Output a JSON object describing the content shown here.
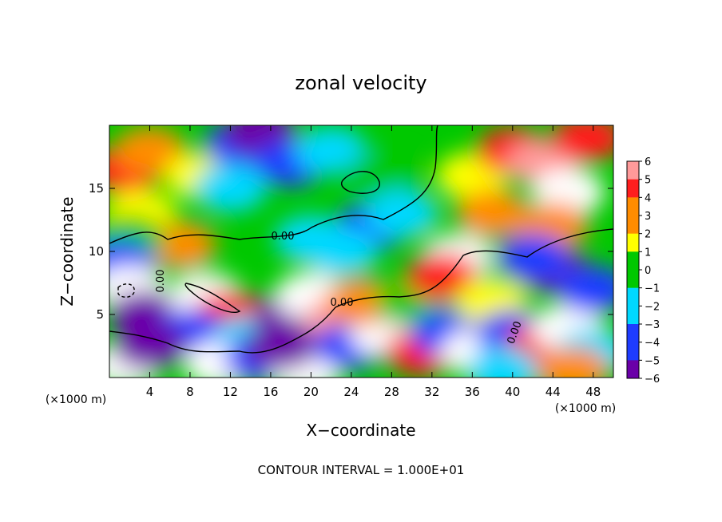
{
  "chart_data": {
    "type": "heatmap",
    "title": "zonal velocity",
    "xlabel": "X−coordinate",
    "ylabel": "Z−coordinate",
    "x_unit": "(×1000 m)",
    "y_unit": "(×1000 m)",
    "xlim": [
      0,
      50
    ],
    "ylim": [
      0,
      20
    ],
    "x_ticks": [
      4,
      8,
      12,
      16,
      20,
      24,
      28,
      32,
      36,
      40,
      44,
      48
    ],
    "y_ticks": [
      5,
      10,
      15
    ],
    "footnote": "CONTOUR INTERVAL = 1.000E+01",
    "colorbar": {
      "levels": [
        6,
        5,
        4,
        3,
        2,
        1,
        0,
        -1,
        -2,
        -3,
        -4,
        -5,
        -6
      ],
      "labels": [
        "6",
        "5",
        "4",
        "3",
        "2",
        "1",
        "0",
        "−1",
        "−2",
        "−3",
        "−4",
        "−5",
        "−6"
      ]
    },
    "contour_labels": [
      "0.00",
      "0.00",
      "0.00",
      "0.00"
    ],
    "colors": {
      "purple": "#6a00a8",
      "blue": "#1e3cff",
      "cyan": "#00d8ff",
      "green": "#00c800",
      "yellow": "#ffff00",
      "orange": "#ff8c00",
      "red": "#ff1e1e",
      "pink": "#ff9a9a",
      "out_of_range": "#ffffff"
    },
    "field_blobs": [
      {
        "x": 1.5,
        "z": 16.5,
        "v": 5
      },
      {
        "x": 4,
        "z": 18,
        "v": 3
      },
      {
        "x": 9,
        "z": 16,
        "v": 2
      },
      {
        "x": 3,
        "z": 13,
        "v": 2
      },
      {
        "x": 13,
        "z": 18.5,
        "v": -4
      },
      {
        "x": 15,
        "z": 19.5,
        "v": -6
      },
      {
        "x": 18,
        "z": 17,
        "v": -3
      },
      {
        "x": 12,
        "z": 15,
        "v": -2
      },
      {
        "x": 22,
        "z": 18,
        "v": -1
      },
      {
        "x": 27,
        "z": 16,
        "v": 1
      },
      {
        "x": 36,
        "z": 16,
        "v": 2
      },
      {
        "x": 40,
        "z": 18,
        "v": 5
      },
      {
        "x": 43,
        "z": 17,
        "v": 6
      },
      {
        "x": 45.5,
        "z": 14.7,
        "v": 7
      },
      {
        "x": 47.5,
        "z": 19,
        "v": 5
      },
      {
        "x": 38,
        "z": 13,
        "v": 3
      },
      {
        "x": 44,
        "z": 12,
        "v": 3
      },
      {
        "x": 26,
        "z": 12,
        "v": -3
      },
      {
        "x": 29,
        "z": 13,
        "v": -2
      },
      {
        "x": 23,
        "z": 10,
        "v": -2
      },
      {
        "x": 20,
        "z": 11,
        "v": -1
      },
      {
        "x": 7,
        "z": 10.5,
        "v": 3
      },
      {
        "x": 2,
        "z": 11,
        "v": 0
      },
      {
        "x": 1,
        "z": 9,
        "v": -3
      },
      {
        "x": 2,
        "z": 7,
        "v": 7
      },
      {
        "x": 3.5,
        "z": 5,
        "v": -5
      },
      {
        "x": 9.5,
        "z": 6.5,
        "v": 7
      },
      {
        "x": 12,
        "z": 5,
        "v": 5
      },
      {
        "x": 8,
        "z": 3.5,
        "v": -4
      },
      {
        "x": 14,
        "z": 3,
        "v": -2
      },
      {
        "x": 1.5,
        "z": 1,
        "v": 7
      },
      {
        "x": 4,
        "z": 2.5,
        "v": -5
      },
      {
        "x": 11,
        "z": 1,
        "v": 7
      },
      {
        "x": 15,
        "z": 1.5,
        "v": -3
      },
      {
        "x": 18,
        "z": 5,
        "v": -5
      },
      {
        "x": 20,
        "z": 6.5,
        "v": 7
      },
      {
        "x": 19.5,
        "z": 0.5,
        "v": 7
      },
      {
        "x": 17,
        "z": 2.5,
        "v": -6
      },
      {
        "x": 23,
        "z": 4.5,
        "v": 6
      },
      {
        "x": 24,
        "z": 2.5,
        "v": -3
      },
      {
        "x": 27.5,
        "z": 3.5,
        "v": 7
      },
      {
        "x": 25,
        "z": 6,
        "v": 3
      },
      {
        "x": 30,
        "z": 6,
        "v": 1
      },
      {
        "x": 31,
        "z": 2,
        "v": 5
      },
      {
        "x": 34.5,
        "z": 9.5,
        "v": 7
      },
      {
        "x": 33,
        "z": 8,
        "v": 5
      },
      {
        "x": 33.5,
        "z": 3.5,
        "v": -4
      },
      {
        "x": 36.5,
        "z": 2,
        "v": 7
      },
      {
        "x": 38,
        "z": 6,
        "v": 2
      },
      {
        "x": 40,
        "z": 3.5,
        "v": -3
      },
      {
        "x": 43,
        "z": 2.5,
        "v": 4
      },
      {
        "x": 45.5,
        "z": 4,
        "v": 7
      },
      {
        "x": 44,
        "z": 8.5,
        "v": -6
      },
      {
        "x": 42,
        "z": 9.5,
        "v": -3
      },
      {
        "x": 48,
        "z": 7,
        "v": -4
      },
      {
        "x": 48,
        "z": 2,
        "v": -2
      },
      {
        "x": 39,
        "z": 0.5,
        "v": -2
      },
      {
        "x": 46,
        "z": 0.5,
        "v": 3
      }
    ]
  }
}
